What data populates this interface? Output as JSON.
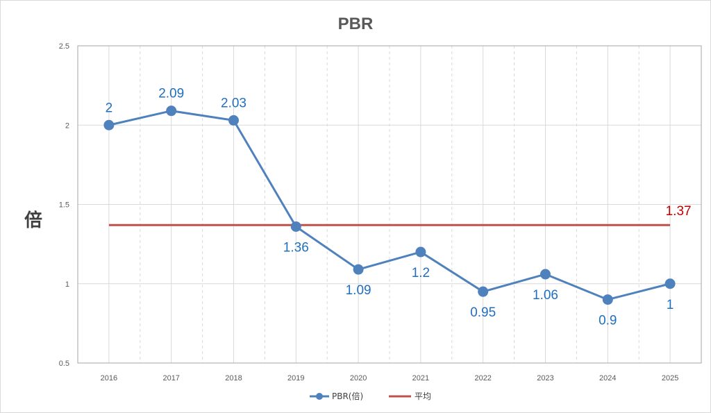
{
  "chart_data": {
    "type": "line",
    "title": "PBR",
    "xlabel": "",
    "ylabel": "倍",
    "categories": [
      "2016",
      "2017",
      "2018",
      "2019",
      "2020",
      "2021",
      "2022",
      "2023",
      "2024",
      "2025"
    ],
    "series": [
      {
        "name": "PBR(倍)",
        "values": [
          2,
          2.09,
          2.03,
          1.36,
          1.09,
          1.2,
          0.95,
          1.06,
          0.9,
          1
        ],
        "labels": [
          "2",
          "2.09",
          "2.03",
          "1.36",
          "1.09",
          "1.2",
          "0.95",
          "1.06",
          "0.9",
          "1"
        ],
        "color": "#4f81bd",
        "label_color": "#1f6fbf"
      },
      {
        "name": "平均",
        "values": [
          1.37,
          1.37,
          1.37,
          1.37,
          1.37,
          1.37,
          1.37,
          1.37,
          1.37,
          1.37
        ],
        "end_label": "1.37",
        "color": "#c0504d",
        "label_color": "#c00000"
      }
    ],
    "ylim": [
      0.5,
      2.5
    ],
    "yticks": [
      "0.5",
      "1",
      "1.5",
      "2",
      "2.5"
    ],
    "grid": true,
    "legend": "bottom"
  }
}
